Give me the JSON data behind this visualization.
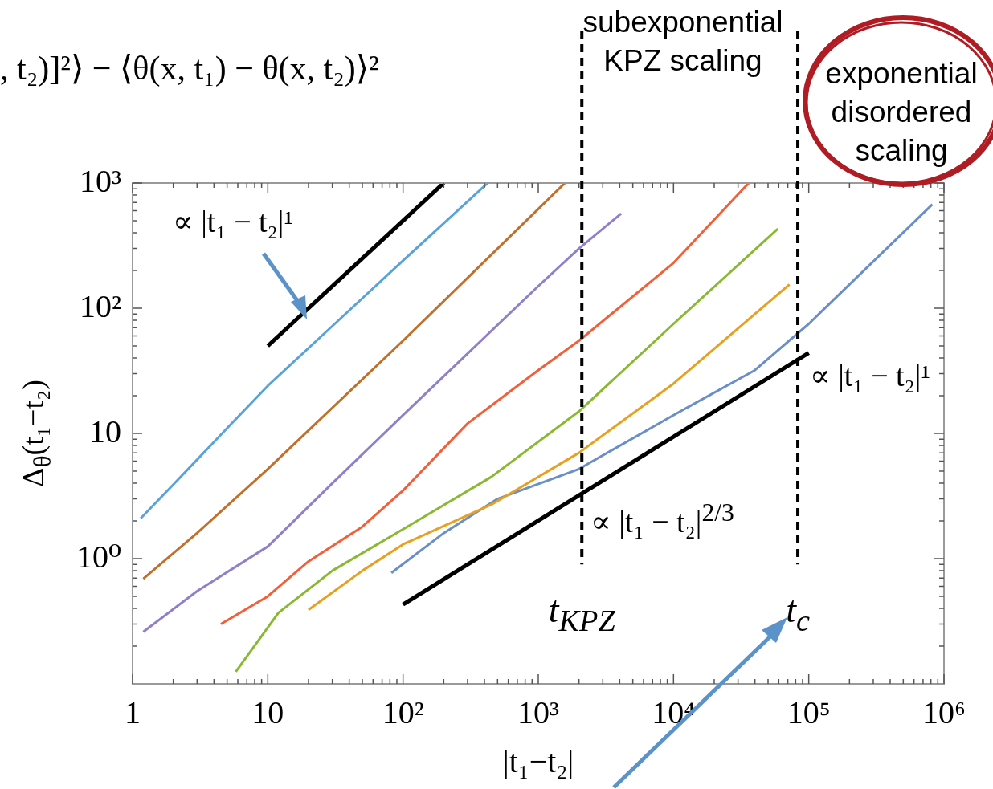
{
  "chart_data": {
    "type": "line",
    "xlabel": "|t₁−t₂|",
    "ylabel": "Δ$_{θ}$(t₁−t₂)",
    "log": "xy",
    "marker": "none",
    "xlim": [
      1,
      1000000
    ],
    "ylim": [
      0.1,
      1000
    ],
    "xticks": [
      {
        "value": 1,
        "label": "1"
      },
      {
        "value": 2,
        "label": null
      },
      {
        "value": 3,
        "label": null
      },
      {
        "value": 4,
        "label": null
      },
      {
        "value": 5,
        "label": null
      },
      {
        "value": 6,
        "label": null
      },
      {
        "value": 7,
        "label": null
      },
      {
        "value": 8,
        "label": null
      },
      {
        "value": 9,
        "label": null
      },
      {
        "value": 10,
        "label": "10"
      },
      {
        "value": 20,
        "label": null
      },
      {
        "value": 30,
        "label": null
      },
      {
        "value": 40,
        "label": null
      },
      {
        "value": 50,
        "label": null
      },
      {
        "value": 60,
        "label": null
      },
      {
        "value": 70,
        "label": null
      },
      {
        "value": 80,
        "label": null
      },
      {
        "value": 90,
        "label": null
      },
      {
        "value": 100,
        "label": "10²"
      },
      {
        "value": 200,
        "label": null
      },
      {
        "value": 300,
        "label": null
      },
      {
        "value": 400,
        "label": null
      },
      {
        "value": 500,
        "label": null
      },
      {
        "value": 600,
        "label": null
      },
      {
        "value": 700,
        "label": null
      },
      {
        "value": 800,
        "label": null
      },
      {
        "value": 900,
        "label": null
      },
      {
        "value": 1000,
        "label": "10³"
      },
      {
        "value": 2000,
        "label": null
      },
      {
        "value": 3000,
        "label": null
      },
      {
        "value": 4000,
        "label": null
      },
      {
        "value": 5000,
        "label": null
      },
      {
        "value": 6000,
        "label": null
      },
      {
        "value": 7000,
        "label": null
      },
      {
        "value": 8000,
        "label": null
      },
      {
        "value": 9000,
        "label": null
      },
      {
        "value": 10000,
        "label": "10⁴"
      },
      {
        "value": 20000,
        "label": null
      },
      {
        "value": 30000,
        "label": null
      },
      {
        "value": 40000,
        "label": null
      },
      {
        "value": 50000,
        "label": null
      },
      {
        "value": 60000,
        "label": null
      },
      {
        "value": 70000,
        "label": null
      },
      {
        "value": 80000,
        "label": null
      },
      {
        "value": 90000,
        "label": null
      },
      {
        "value": 100000,
        "label": "10⁵"
      },
      {
        "value": 200000,
        "label": null
      },
      {
        "value": 300000,
        "label": null
      },
      {
        "value": 400000,
        "label": null
      },
      {
        "value": 500000,
        "label": null
      },
      {
        "value": 600000,
        "label": null
      },
      {
        "value": 700000,
        "label": null
      },
      {
        "value": 800000,
        "label": null
      },
      {
        "value": 900000,
        "label": null
      },
      {
        "value": 1000000,
        "label": "10⁶"
      }
    ],
    "yticks": [
      {
        "value": 0.2,
        "label": null
      },
      {
        "value": 0.3,
        "label": null
      },
      {
        "value": 0.4,
        "label": null
      },
      {
        "value": 0.5,
        "label": null
      },
      {
        "value": 0.6,
        "label": null
      },
      {
        "value": 0.7,
        "label": null
      },
      {
        "value": 0.8,
        "label": null
      },
      {
        "value": 0.9,
        "label": null
      },
      {
        "value": 1,
        "label": "10⁰"
      },
      {
        "value": 2,
        "label": null
      },
      {
        "value": 3,
        "label": null
      },
      {
        "value": 4,
        "label": null
      },
      {
        "value": 5,
        "label": null
      },
      {
        "value": 6,
        "label": null
      },
      {
        "value": 7,
        "label": null
      },
      {
        "value": 8,
        "label": null
      },
      {
        "value": 9,
        "label": null
      },
      {
        "value": 10,
        "label": "10"
      },
      {
        "value": 20,
        "label": null
      },
      {
        "value": 30,
        "label": null
      },
      {
        "value": 40,
        "label": null
      },
      {
        "value": 50,
        "label": null
      },
      {
        "value": 60,
        "label": null
      },
      {
        "value": 70,
        "label": null
      },
      {
        "value": 80,
        "label": null
      },
      {
        "value": 90,
        "label": null
      },
      {
        "value": 100,
        "label": "10²"
      },
      {
        "value": 200,
        "label": null
      },
      {
        "value": 300,
        "label": null
      },
      {
        "value": 400,
        "label": null
      },
      {
        "value": 500,
        "label": null
      },
      {
        "value": 600,
        "label": null
      },
      {
        "value": 700,
        "label": null
      },
      {
        "value": 800,
        "label": null
      },
      {
        "value": 900,
        "label": null
      },
      {
        "value": 1000,
        "label": "10³"
      }
    ],
    "series": [
      {
        "color": "#000000",
        "x": [
          10,
          200
        ],
        "values": [
          50,
          1000
        ]
      },
      {
        "color": "#5aa3d6",
        "x": [
          1.15,
          2,
          5,
          10,
          30,
          100,
          423
        ],
        "values": [
          2.1,
          3.9,
          11,
          24,
          72,
          240,
          1000
        ]
      },
      {
        "color": "#c0702a",
        "x": [
          1.2,
          3,
          10,
          100,
          1574
        ],
        "values": [
          0.69,
          1.6,
          5.2,
          55,
          1000
        ]
      },
      {
        "color": "#9080c8",
        "x": [
          1.2,
          3,
          10,
          30,
          100,
          1000,
          2000,
          4100
        ],
        "values": [
          0.26,
          0.55,
          1.25,
          4,
          14,
          150,
          300,
          570
        ]
      },
      {
        "color": "#f0603a",
        "x": [
          4.5,
          10,
          20,
          50,
          100,
          300,
          1000,
          2000,
          10000,
          36000
        ],
        "values": [
          0.3,
          0.5,
          0.95,
          1.8,
          3.5,
          12,
          32,
          55,
          230,
          1000
        ]
      },
      {
        "color": "#8ab832",
        "x": [
          5.8,
          12,
          30,
          94,
          450,
          2000,
          10000,
          59000
        ],
        "values": [
          0.125,
          0.37,
          0.8,
          1.65,
          4.5,
          15,
          75,
          430
        ]
      },
      {
        "color": "#e8a020",
        "x": [
          20,
          50,
          100,
          450,
          2000,
          10000,
          72000
        ],
        "values": [
          0.39,
          0.8,
          1.3,
          2.7,
          7,
          25,
          155
        ]
      },
      {
        "color": "#6a8ec8",
        "x": [
          82,
          200,
          500,
          2000,
          10000,
          40000,
          100000,
          820000
        ],
        "values": [
          0.77,
          1.6,
          3,
          5.2,
          14,
          32,
          75,
          675
        ]
      },
      {
        "color": "#000000",
        "x": [
          100,
          100000
        ],
        "values": [
          0.43,
          44
        ]
      }
    ],
    "ref_lines": [
      {
        "axis": "x",
        "value": 2100,
        "label": "t$_{KPZ}$",
        "color": "#000000",
        "line_style": "dashed"
      },
      {
        "axis": "x",
        "value": 83000,
        "label": "t$_{c}$",
        "color": "#000000",
        "line_style": "dashed"
      }
    ],
    "annotations": [
      ", t₂)]²⟩ − ⟨θ(x, t₁) − θ(x, t₂)⟩²",
      "subexponential KPZ scaling",
      "exponential disordered scaling",
      "∝ |t₁ − t₂|¹",
      "∝ |t₁ − t₂|¹",
      "∝ |t₁ − t₂|$^{2/3}$"
    ]
  }
}
